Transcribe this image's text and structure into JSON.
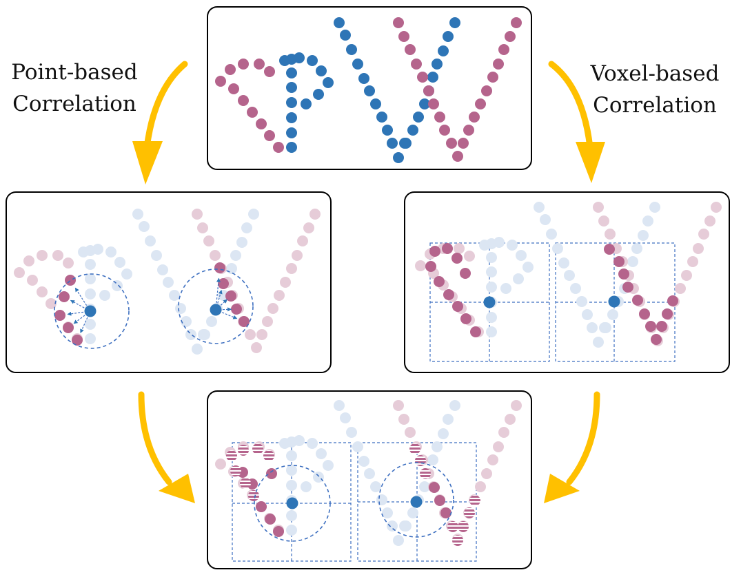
{
  "labels": {
    "point_line1": "Point-based",
    "point_line2": "Correlation",
    "voxel_line1": "Voxel-based",
    "voxel_line2": "Correlation"
  },
  "colors": {
    "blue": "#2e75b6",
    "pink": "#b5648c",
    "faded_blue": "#dce6f3",
    "faded_pink": "#e6ccd8",
    "arrow": "#ffc000",
    "grid": "#3d6fc0",
    "frame": "#000000"
  },
  "panels": [
    {
      "id": "source",
      "name": "source-point-cloud-panel"
    },
    {
      "id": "point",
      "name": "point-based-correlation-panel"
    },
    {
      "id": "voxel",
      "name": "voxel-based-correlation-panel"
    },
    {
      "id": "fused",
      "name": "fused-correlation-panel"
    }
  ]
}
